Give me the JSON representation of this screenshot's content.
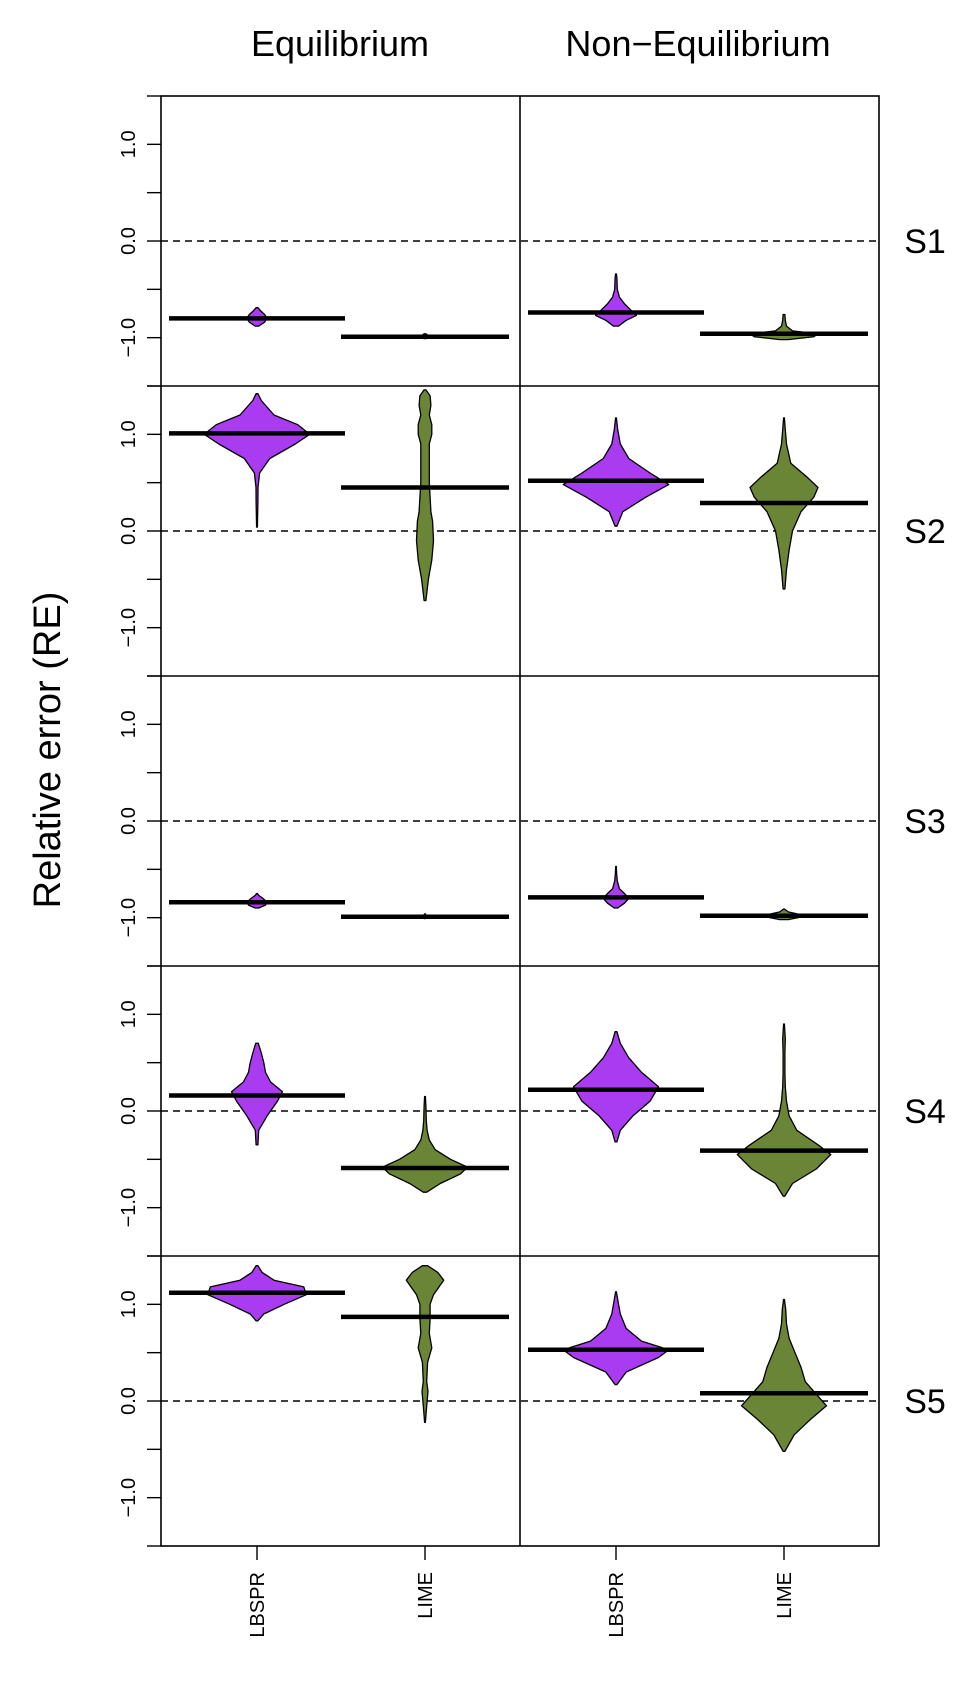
{
  "chart_data": {
    "type": "violin",
    "ylabel": "Relative error (RE)",
    "columns": [
      "Equilibrium",
      "Non−Equilibrium"
    ],
    "rows": [
      "S1",
      "S2",
      "S3",
      "S4",
      "S5"
    ],
    "categories": [
      "LBSPR",
      "LIME"
    ],
    "ylim": [
      -1.5,
      1.5
    ],
    "yticks": [
      1.0,
      0.0,
      -1.0
    ],
    "ytick_labels": [
      "1.0",
      "0.0",
      "−1.0"
    ],
    "reference_line": 0.0,
    "colors": {
      "LBSPR": "#a93cf0",
      "LIME": "#6b8537"
    },
    "panels": [
      {
        "row": "S1",
        "column": "Equilibrium",
        "violins": [
          {
            "category": "LBSPR",
            "median": -0.8,
            "profile": [
              [
                -0.88,
                0.02
              ],
              [
                -0.84,
                0.09
              ],
              [
                -0.8,
                0.12
              ],
              [
                -0.76,
                0.09
              ],
              [
                -0.72,
                0.04
              ],
              [
                -0.69,
                0.01
              ]
            ]
          },
          {
            "category": "LIME",
            "median": -0.99,
            "profile": [
              [
                -1.01,
                0.01
              ],
              [
                -0.99,
                0.1
              ],
              [
                -0.98,
                0.04
              ],
              [
                -0.96,
                0.01
              ]
            ]
          }
        ]
      },
      {
        "row": "S1",
        "column": "Non−Equilibrium",
        "violins": [
          {
            "category": "LBSPR",
            "median": -0.74,
            "profile": [
              [
                -0.88,
                0.03
              ],
              [
                -0.82,
                0.12
              ],
              [
                -0.77,
                0.24
              ],
              [
                -0.72,
                0.18
              ],
              [
                -0.65,
                0.1
              ],
              [
                -0.58,
                0.04
              ],
              [
                -0.5,
                0.015
              ],
              [
                -0.38,
                0.01
              ],
              [
                -0.34,
                0.005
              ]
            ]
          },
          {
            "category": "LIME",
            "median": -0.96,
            "profile": [
              [
                -1.02,
                0.05
              ],
              [
                -0.99,
                0.35
              ],
              [
                -0.96,
                0.4
              ],
              [
                -0.93,
                0.1
              ],
              [
                -0.88,
                0.03
              ],
              [
                -0.82,
                0.015
              ],
              [
                -0.76,
                0.01
              ]
            ]
          }
        ]
      },
      {
        "row": "S2",
        "column": "Equilibrium",
        "violins": [
          {
            "category": "LBSPR",
            "median": 1.01,
            "profile": [
              [
                0.04,
                0.005
              ],
              [
                0.3,
                0.01
              ],
              [
                0.45,
                0.012
              ],
              [
                0.6,
                0.03
              ],
              [
                0.75,
                0.15
              ],
              [
                0.9,
                0.45
              ],
              [
                1.0,
                0.62
              ],
              [
                1.1,
                0.48
              ],
              [
                1.2,
                0.2
              ],
              [
                1.35,
                0.05
              ],
              [
                1.42,
                0.01
              ]
            ]
          },
          {
            "category": "LIME",
            "median": 0.45,
            "profile": [
              [
                -0.72,
                0.01
              ],
              [
                -0.5,
                0.04
              ],
              [
                -0.3,
                0.08
              ],
              [
                -0.1,
                0.1
              ],
              [
                0.1,
                0.09
              ],
              [
                0.2,
                0.07
              ],
              [
                0.35,
                0.06
              ],
              [
                0.5,
                0.05
              ],
              [
                0.7,
                0.05
              ],
              [
                0.9,
                0.05
              ],
              [
                1.0,
                0.08
              ],
              [
                1.1,
                0.08
              ],
              [
                1.2,
                0.05
              ],
              [
                1.3,
                0.07
              ],
              [
                1.4,
                0.06
              ],
              [
                1.46,
                0.01
              ]
            ]
          }
        ]
      },
      {
        "row": "S2",
        "column": "Non−Equilibrium",
        "violins": [
          {
            "category": "LBSPR",
            "median": 0.52,
            "profile": [
              [
                0.05,
                0.01
              ],
              [
                0.2,
                0.08
              ],
              [
                0.35,
                0.35
              ],
              [
                0.48,
                0.62
              ],
              [
                0.6,
                0.4
              ],
              [
                0.75,
                0.15
              ],
              [
                0.9,
                0.05
              ],
              [
                1.05,
                0.02
              ],
              [
                1.17,
                0.005
              ]
            ]
          },
          {
            "category": "LIME",
            "median": 0.29,
            "profile": [
              [
                -0.6,
                0.01
              ],
              [
                -0.4,
                0.03
              ],
              [
                -0.2,
                0.06
              ],
              [
                0.0,
                0.1
              ],
              [
                0.2,
                0.2
              ],
              [
                0.35,
                0.35
              ],
              [
                0.45,
                0.4
              ],
              [
                0.55,
                0.28
              ],
              [
                0.7,
                0.08
              ],
              [
                0.9,
                0.03
              ],
              [
                1.05,
                0.015
              ],
              [
                1.17,
                0.005
              ]
            ]
          }
        ]
      },
      {
        "row": "S3",
        "column": "Equilibrium",
        "violins": [
          {
            "category": "LBSPR",
            "median": -0.84,
            "profile": [
              [
                -0.9,
                0.02
              ],
              [
                -0.87,
                0.1
              ],
              [
                -0.84,
                0.12
              ],
              [
                -0.8,
                0.07
              ],
              [
                -0.77,
                0.02
              ],
              [
                -0.75,
                0.005
              ]
            ]
          },
          {
            "category": "LIME",
            "median": -0.99,
            "profile": [
              [
                -1.01,
                0.005
              ],
              [
                -0.99,
                0.03
              ],
              [
                -0.97,
                0.01
              ],
              [
                -0.96,
                0.003
              ]
            ]
          }
        ]
      },
      {
        "row": "S3",
        "column": "Non−Equilibrium",
        "violins": [
          {
            "category": "LBSPR",
            "median": -0.79,
            "profile": [
              [
                -0.9,
                0.02
              ],
              [
                -0.85,
                0.1
              ],
              [
                -0.8,
                0.15
              ],
              [
                -0.75,
                0.1
              ],
              [
                -0.7,
                0.04
              ],
              [
                -0.62,
                0.015
              ],
              [
                -0.55,
                0.008
              ],
              [
                -0.47,
                0.003
              ]
            ]
          },
          {
            "category": "LIME",
            "median": -0.98,
            "profile": [
              [
                -1.02,
                0.05
              ],
              [
                -0.99,
                0.22
              ],
              [
                -0.97,
                0.2
              ],
              [
                -0.94,
                0.05
              ],
              [
                -0.91,
                0.005
              ]
            ]
          }
        ]
      },
      {
        "row": "S4",
        "column": "Equilibrium",
        "violins": [
          {
            "category": "LBSPR",
            "median": 0.16,
            "profile": [
              [
                -0.35,
                0.01
              ],
              [
                -0.2,
                0.02
              ],
              [
                -0.05,
                0.12
              ],
              [
                0.1,
                0.24
              ],
              [
                0.2,
                0.3
              ],
              [
                0.3,
                0.16
              ],
              [
                0.4,
                0.1
              ],
              [
                0.5,
                0.08
              ],
              [
                0.6,
                0.05
              ],
              [
                0.7,
                0.015
              ]
            ]
          },
          {
            "category": "LIME",
            "median": -0.59,
            "profile": [
              [
                -0.84,
                0.02
              ],
              [
                -0.75,
                0.18
              ],
              [
                -0.65,
                0.42
              ],
              [
                -0.58,
                0.5
              ],
              [
                -0.5,
                0.3
              ],
              [
                -0.4,
                0.12
              ],
              [
                -0.3,
                0.05
              ],
              [
                -0.2,
                0.025
              ],
              [
                -0.1,
                0.015
              ],
              [
                0.05,
                0.01
              ],
              [
                0.15,
                0.005
              ]
            ]
          }
        ]
      },
      {
        "row": "S4",
        "column": "Non−Equilibrium",
        "violins": [
          {
            "category": "LBSPR",
            "median": 0.22,
            "profile": [
              [
                -0.32,
                0.01
              ],
              [
                -0.2,
                0.05
              ],
              [
                -0.05,
                0.2
              ],
              [
                0.1,
                0.4
              ],
              [
                0.25,
                0.5
              ],
              [
                0.4,
                0.3
              ],
              [
                0.55,
                0.15
              ],
              [
                0.7,
                0.05
              ],
              [
                0.82,
                0.01
              ]
            ]
          },
          {
            "category": "LIME",
            "median": -0.41,
            "profile": [
              [
                -0.88,
                0.01
              ],
              [
                -0.75,
                0.1
              ],
              [
                -0.6,
                0.38
              ],
              [
                -0.45,
                0.55
              ],
              [
                -0.35,
                0.4
              ],
              [
                -0.2,
                0.15
              ],
              [
                -0.05,
                0.06
              ],
              [
                0.1,
                0.03
              ],
              [
                0.25,
                0.015
              ],
              [
                0.4,
                0.01
              ],
              [
                0.6,
                0.01
              ],
              [
                0.75,
                0.015
              ],
              [
                0.9,
                0.005
              ]
            ]
          }
        ]
      },
      {
        "row": "S5",
        "column": "Equilibrium",
        "violins": [
          {
            "category": "LBSPR",
            "median": 1.12,
            "profile": [
              [
                0.83,
                0.01
              ],
              [
                0.9,
                0.08
              ],
              [
                1.0,
                0.32
              ],
              [
                1.1,
                0.58
              ],
              [
                1.18,
                0.55
              ],
              [
                1.25,
                0.2
              ],
              [
                1.33,
                0.06
              ],
              [
                1.4,
                0.01
              ]
            ]
          },
          {
            "category": "LIME",
            "median": 0.87,
            "profile": [
              [
                -0.22,
                0.005
              ],
              [
                -0.05,
                0.02
              ],
              [
                0.1,
                0.035
              ],
              [
                0.2,
                0.02
              ],
              [
                0.4,
                0.03
              ],
              [
                0.55,
                0.08
              ],
              [
                0.7,
                0.05
              ],
              [
                0.85,
                0.06
              ],
              [
                1.0,
                0.06
              ],
              [
                1.1,
                0.1
              ],
              [
                1.25,
                0.22
              ],
              [
                1.33,
                0.15
              ],
              [
                1.4,
                0.03
              ]
            ]
          }
        ]
      },
      {
        "row": "S5",
        "column": "Non−Equilibrium",
        "violins": [
          {
            "category": "LBSPR",
            "median": 0.53,
            "profile": [
              [
                0.17,
                0.01
              ],
              [
                0.3,
                0.12
              ],
              [
                0.45,
                0.5
              ],
              [
                0.53,
                0.62
              ],
              [
                0.62,
                0.3
              ],
              [
                0.75,
                0.12
              ],
              [
                0.9,
                0.05
              ],
              [
                1.05,
                0.02
              ],
              [
                1.13,
                0.005
              ]
            ]
          },
          {
            "category": "LIME",
            "median": 0.08,
            "profile": [
              [
                -0.52,
                0.01
              ],
              [
                -0.35,
                0.12
              ],
              [
                -0.2,
                0.3
              ],
              [
                -0.05,
                0.5
              ],
              [
                0.05,
                0.4
              ],
              [
                0.2,
                0.25
              ],
              [
                0.35,
                0.2
              ],
              [
                0.5,
                0.13
              ],
              [
                0.65,
                0.06
              ],
              [
                0.8,
                0.03
              ],
              [
                0.95,
                0.02
              ],
              [
                1.05,
                0.005
              ]
            ]
          }
        ]
      }
    ]
  }
}
